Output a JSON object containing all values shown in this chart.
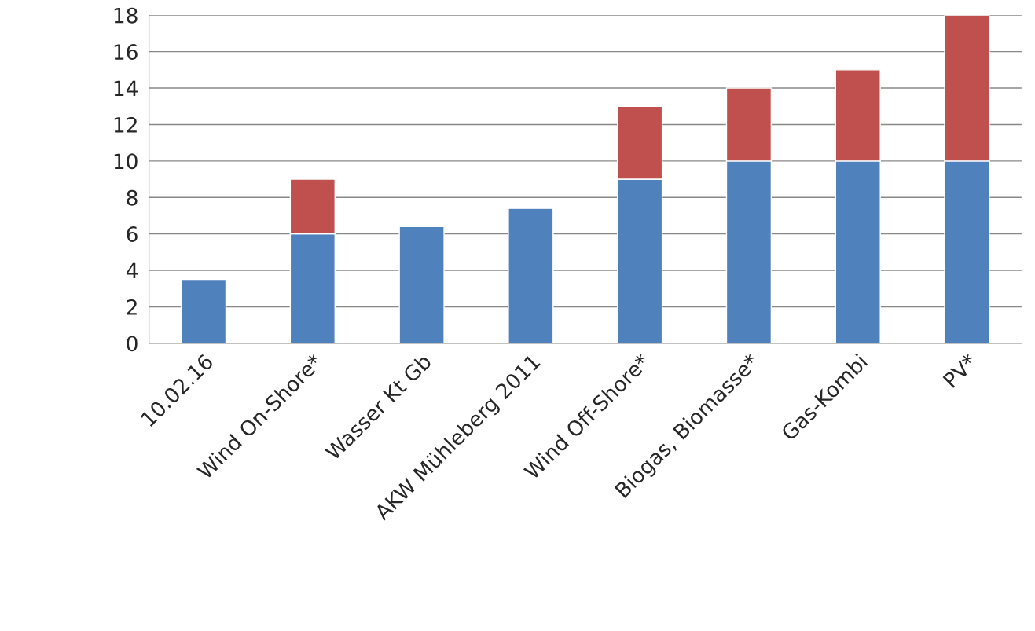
{
  "chart_data": {
    "type": "bar",
    "stacked": true,
    "categories": [
      "10.02.16",
      "Wind On-Shore*",
      "Wasser Kt Gb",
      "AKW Mühleberg 2011",
      "Wind Off-Shore*",
      "Biogas, Biomasse*",
      "Gas-Kombi",
      "PV*"
    ],
    "series": [
      {
        "color": "#4f81bd",
        "values": [
          3.5,
          6,
          6.4,
          7.4,
          9,
          10,
          10,
          10
        ]
      },
      {
        "color": "#c0504d",
        "values": [
          null,
          3,
          null,
          null,
          4,
          4,
          5,
          8
        ]
      }
    ],
    "ylim": [
      0,
      18
    ],
    "yticks": [
      0,
      2,
      4,
      6,
      8,
      10,
      12,
      14,
      16,
      18
    ],
    "grid": "y",
    "legend": false
  }
}
